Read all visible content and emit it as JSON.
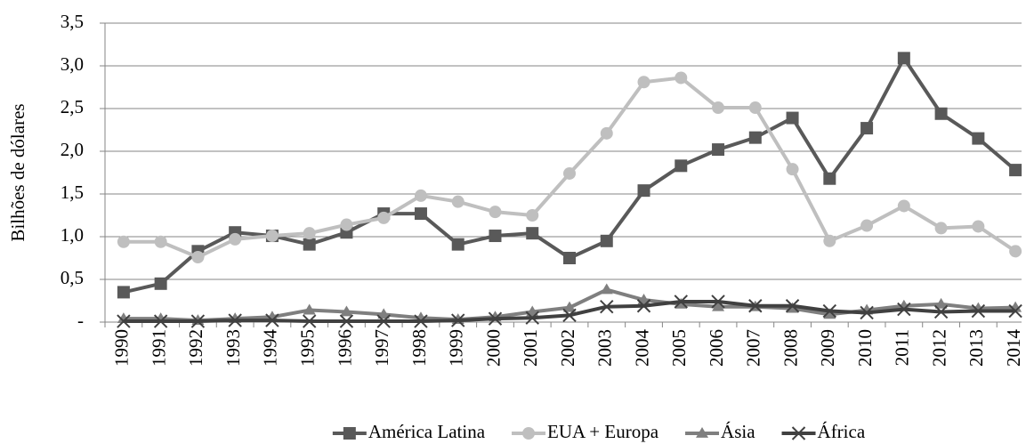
{
  "chart_data": {
    "type": "line",
    "y_label": "Bilhões de dólares",
    "categories": [
      "1990",
      "1991",
      "1992",
      "1993",
      "1994",
      "1995",
      "1996",
      "1997",
      "1998",
      "1999",
      "2000",
      "2001",
      "2002",
      "2003",
      "2004",
      "2005",
      "2006",
      "2007",
      "2008",
      "2009",
      "2010",
      "2011",
      "2012",
      "2013",
      "2014"
    ],
    "ylim": [
      0,
      3.5
    ],
    "yticks": [
      {
        "value": 0,
        "label": "-"
      },
      {
        "value": 0.5,
        "label": "0,5"
      },
      {
        "value": 1,
        "label": "1,0"
      },
      {
        "value": 1.5,
        "label": "1,5"
      },
      {
        "value": 2,
        "label": "2,0"
      },
      {
        "value": 2.5,
        "label": "2,5"
      },
      {
        "value": 3,
        "label": "3,0"
      },
      {
        "value": 3.5,
        "label": "3,5"
      }
    ],
    "grid": true,
    "legend": "bottom",
    "series": [
      {
        "name": "América Latina",
        "color": "#595959",
        "marker": "square",
        "values": [
          0.35,
          0.45,
          0.83,
          1.05,
          1.01,
          0.91,
          1.05,
          1.27,
          1.27,
          0.91,
          1.01,
          1.04,
          0.75,
          0.95,
          1.54,
          1.83,
          2.02,
          2.16,
          2.39,
          1.68,
          2.27,
          3.09,
          2.44,
          2.15,
          1.78
        ]
      },
      {
        "name": "EUA + Europa",
        "color": "#bfbfbf",
        "marker": "circle",
        "values": [
          0.94,
          0.94,
          0.76,
          0.97,
          1.01,
          1.04,
          1.14,
          1.22,
          1.48,
          1.41,
          1.29,
          1.25,
          1.74,
          2.21,
          2.81,
          2.86,
          2.51,
          2.51,
          1.79,
          0.95,
          1.13,
          1.36,
          1.1,
          1.12,
          0.83
        ]
      },
      {
        "name": "Ásia",
        "color": "#7f7f7f",
        "marker": "triangle",
        "values": [
          0.04,
          0.04,
          0.02,
          0.04,
          0.06,
          0.14,
          0.12,
          0.09,
          0.05,
          0.03,
          0.06,
          0.12,
          0.17,
          0.38,
          0.26,
          0.21,
          0.18,
          0.18,
          0.16,
          0.09,
          0.14,
          0.19,
          0.21,
          0.16,
          0.17
        ]
      },
      {
        "name": "África",
        "color": "#404040",
        "marker": "x",
        "values": [
          0.01,
          0.01,
          0.01,
          0.02,
          0.02,
          0.01,
          0.01,
          0.01,
          0.01,
          0.02,
          0.04,
          0.05,
          0.08,
          0.18,
          0.19,
          0.24,
          0.24,
          0.19,
          0.19,
          0.13,
          0.11,
          0.15,
          0.12,
          0.13,
          0.13
        ]
      }
    ]
  }
}
